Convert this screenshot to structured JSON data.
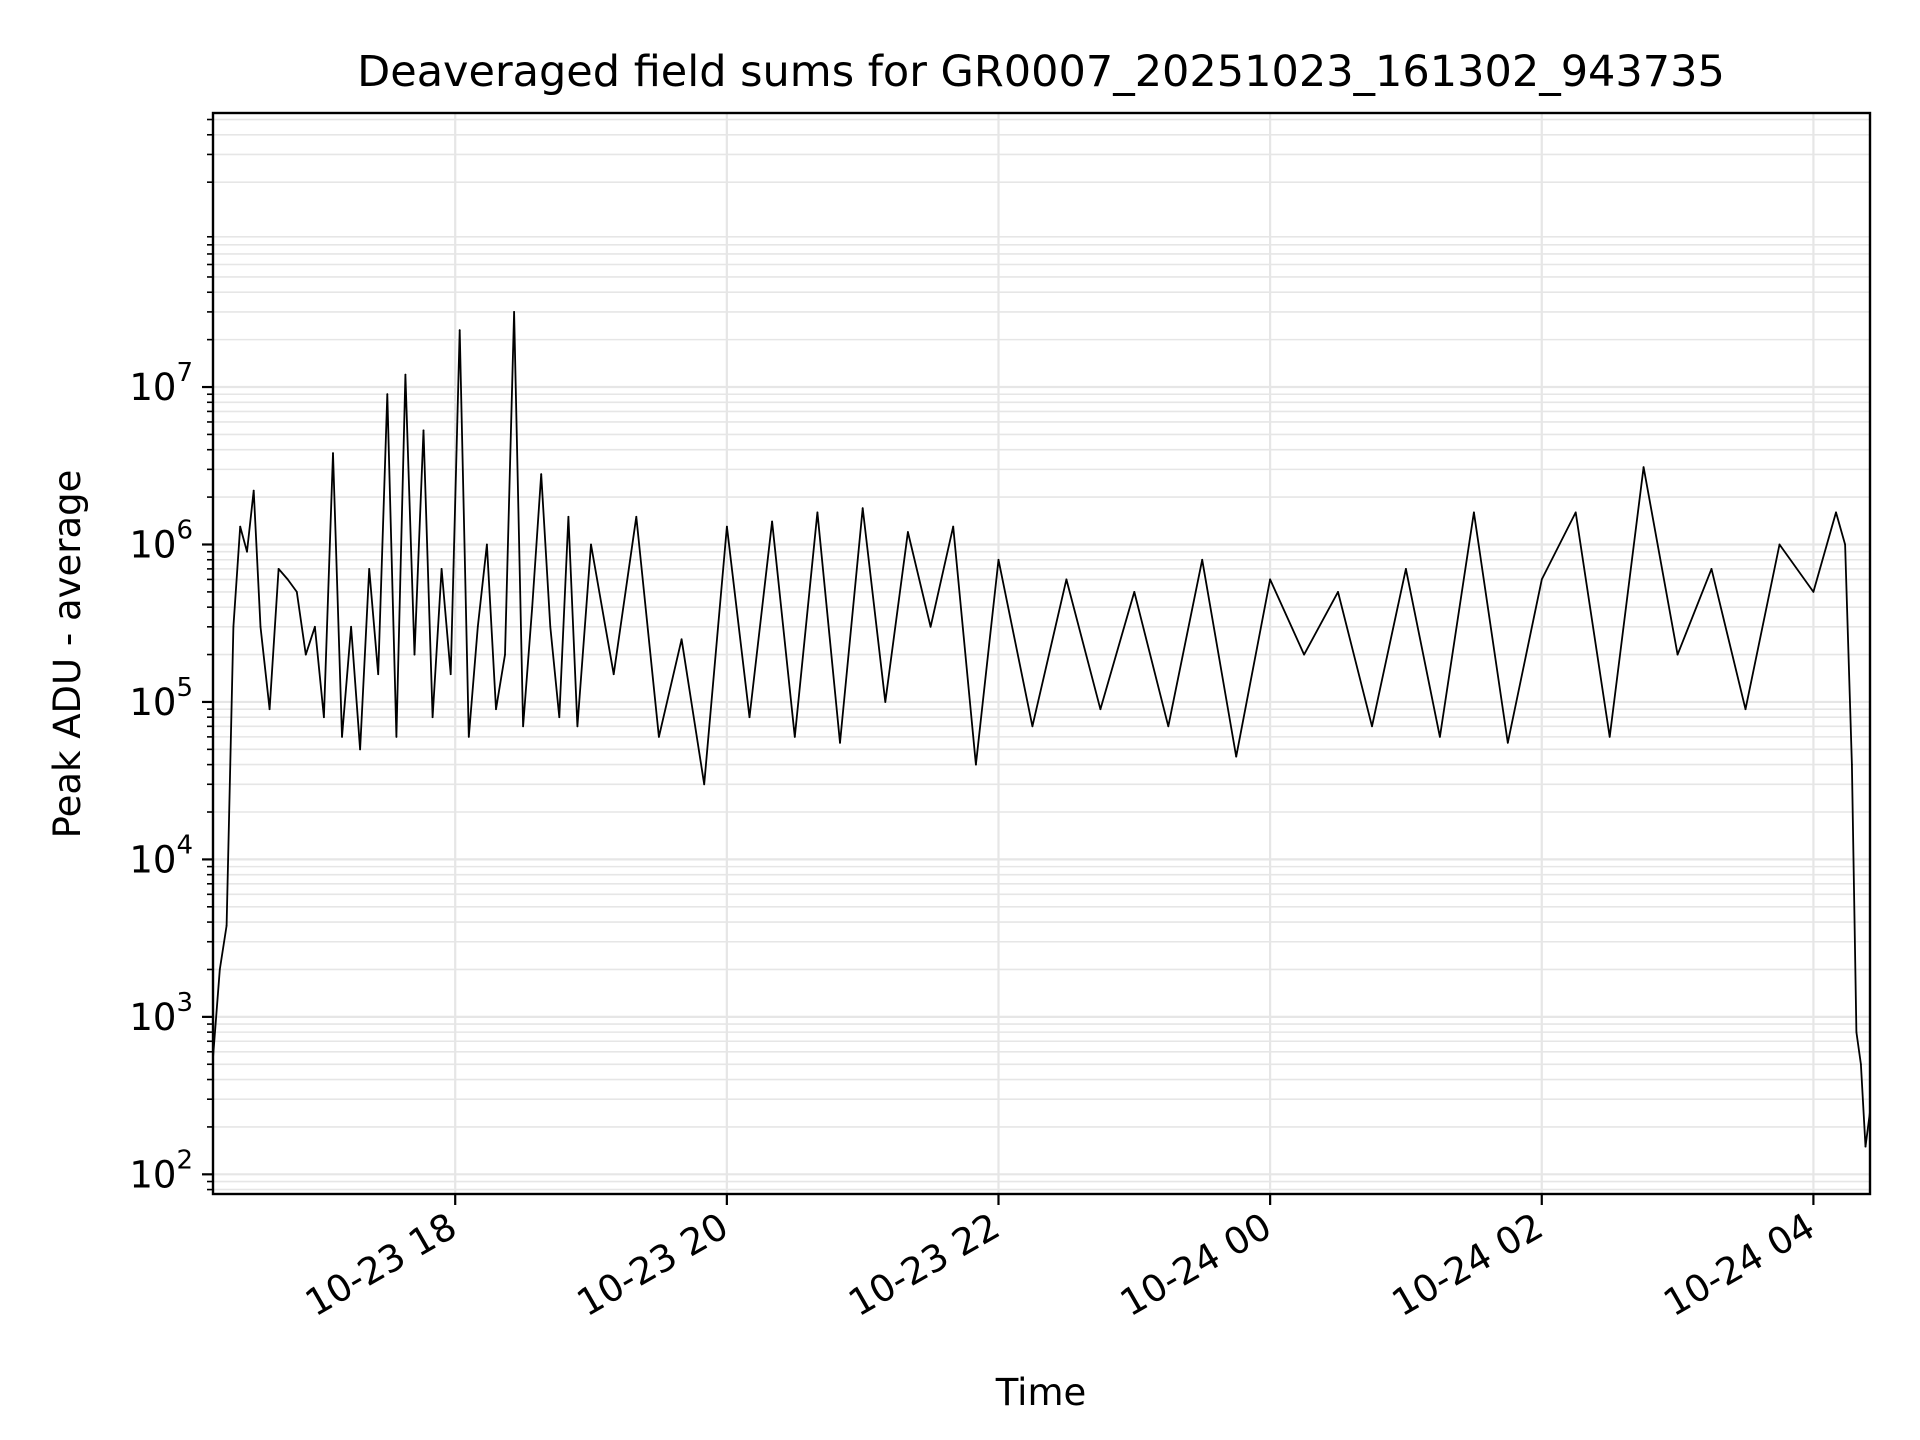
{
  "chart_data": {
    "type": "line",
    "title": "Deaveraged field sums for GR0007_20251023_161302_943735",
    "xlabel": "Time",
    "ylabel": "Peak ADU - average",
    "yscale": "log",
    "xlim": [
      "2025-10-23 16:13",
      "2025-10-24 04:25"
    ],
    "ylim": [
      75,
      550000000
    ],
    "grid": true,
    "line_color": "#000000",
    "grid_color": "#e6e6e6",
    "x_ticks": [
      {
        "value": "2025-10-23 18:00",
        "label": "10-23 18"
      },
      {
        "value": "2025-10-23 20:00",
        "label": "10-23 20"
      },
      {
        "value": "2025-10-23 22:00",
        "label": "10-23 22"
      },
      {
        "value": "2025-10-24 00:00",
        "label": "10-24 00"
      },
      {
        "value": "2025-10-24 02:00",
        "label": "10-24 02"
      },
      {
        "value": "2025-10-24 04:00",
        "label": "10-24 04"
      }
    ],
    "y_ticks": [
      {
        "value": 100,
        "base": "10",
        "exp": "2"
      },
      {
        "value": 1000,
        "base": "10",
        "exp": "3"
      },
      {
        "value": 10000,
        "base": "10",
        "exp": "4"
      },
      {
        "value": 100000,
        "base": "10",
        "exp": "5"
      },
      {
        "value": 1000000,
        "base": "10",
        "exp": "6"
      },
      {
        "value": 10000000,
        "base": "10",
        "exp": "7"
      }
    ],
    "series": [
      {
        "x": [
          "2025-10-23 16:13",
          "2025-10-23 16:16",
          "2025-10-23 16:19",
          "2025-10-23 16:22",
          "2025-10-23 16:25",
          "2025-10-23 16:28",
          "2025-10-23 16:31",
          "2025-10-23 16:34",
          "2025-10-23 16:38",
          "2025-10-23 16:42",
          "2025-10-23 16:46",
          "2025-10-23 16:50",
          "2025-10-23 16:54",
          "2025-10-23 16:58",
          "2025-10-23 17:02",
          "2025-10-23 17:06",
          "2025-10-23 17:10",
          "2025-10-23 17:14",
          "2025-10-23 17:18",
          "2025-10-23 17:22",
          "2025-10-23 17:26",
          "2025-10-23 17:30",
          "2025-10-23 17:34",
          "2025-10-23 17:38",
          "2025-10-23 17:42",
          "2025-10-23 17:46",
          "2025-10-23 17:50",
          "2025-10-23 17:54",
          "2025-10-23 17:58",
          "2025-10-23 18:02",
          "2025-10-23 18:06",
          "2025-10-23 18:10",
          "2025-10-23 18:14",
          "2025-10-23 18:18",
          "2025-10-23 18:22",
          "2025-10-23 18:26",
          "2025-10-23 18:30",
          "2025-10-23 18:34",
          "2025-10-23 18:38",
          "2025-10-23 18:42",
          "2025-10-23 18:46",
          "2025-10-23 18:50",
          "2025-10-23 18:54",
          "2025-10-23 19:00",
          "2025-10-23 19:10",
          "2025-10-23 19:20",
          "2025-10-23 19:30",
          "2025-10-23 19:40",
          "2025-10-23 19:50",
          "2025-10-23 20:00",
          "2025-10-23 20:10",
          "2025-10-23 20:20",
          "2025-10-23 20:30",
          "2025-10-23 20:40",
          "2025-10-23 20:50",
          "2025-10-23 21:00",
          "2025-10-23 21:10",
          "2025-10-23 21:20",
          "2025-10-23 21:30",
          "2025-10-23 21:40",
          "2025-10-23 21:50",
          "2025-10-23 22:00",
          "2025-10-23 22:15",
          "2025-10-23 22:30",
          "2025-10-23 22:45",
          "2025-10-23 23:00",
          "2025-10-23 23:15",
          "2025-10-23 23:30",
          "2025-10-23 23:45",
          "2025-10-24 00:00",
          "2025-10-24 00:15",
          "2025-10-24 00:30",
          "2025-10-24 00:45",
          "2025-10-24 01:00",
          "2025-10-24 01:15",
          "2025-10-24 01:30",
          "2025-10-24 01:45",
          "2025-10-24 02:00",
          "2025-10-24 02:15",
          "2025-10-24 02:30",
          "2025-10-24 02:45",
          "2025-10-24 03:00",
          "2025-10-24 03:15",
          "2025-10-24 03:30",
          "2025-10-24 03:45",
          "2025-10-24 04:00",
          "2025-10-24 04:10",
          "2025-10-24 04:14",
          "2025-10-24 04:17",
          "2025-10-24 04:19",
          "2025-10-24 04:21",
          "2025-10-24 04:23",
          "2025-10-24 04:25"
        ],
        "values": [
          550,
          2000,
          3800,
          300000,
          1300000,
          900000,
          2200000,
          300000,
          90000,
          700000,
          600000,
          500000,
          200000,
          300000,
          80000,
          3800000,
          60000,
          300000,
          50000,
          700000,
          150000,
          9000000,
          60000,
          12000000,
          200000,
          5300000,
          80000,
          700000,
          150000,
          23000000,
          60000,
          300000,
          1000000,
          90000,
          200000,
          30000000,
          70000,
          400000,
          2800000,
          300000,
          80000,
          1500000,
          70000,
          1000000,
          150000,
          1500000,
          60000,
          250000,
          30000,
          1300000,
          80000,
          1400000,
          60000,
          1600000,
          55000,
          1700000,
          100000,
          1200000,
          300000,
          1300000,
          40000,
          800000,
          70000,
          600000,
          90000,
          500000,
          70000,
          800000,
          45000,
          600000,
          200000,
          500000,
          70000,
          700000,
          60000,
          1600000,
          55000,
          600000,
          1600000,
          60000,
          3100000,
          200000,
          700000,
          90000,
          1000000,
          500000,
          1600000,
          1000000,
          40000,
          800,
          500,
          150,
          250
        ]
      }
    ]
  }
}
